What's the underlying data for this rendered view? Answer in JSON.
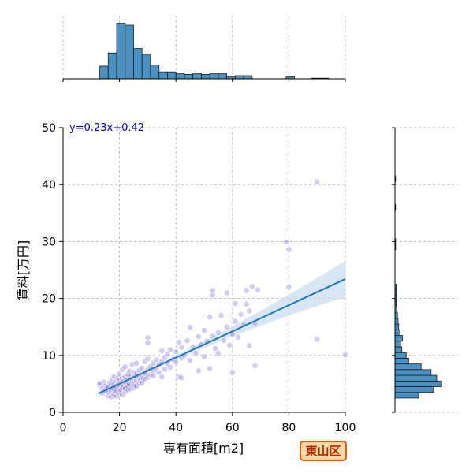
{
  "chart_data": {
    "type": "scatter",
    "xlabel": "専有面積[m2]",
    "ylabel": "賃料[万円]",
    "xlim": [
      0,
      100
    ],
    "ylim": [
      0,
      50
    ],
    "x_ticks": [
      "0",
      "20",
      "40",
      "60",
      "80",
      "100"
    ],
    "y_ticks": [
      "0",
      "10",
      "20",
      "30",
      "40",
      "50"
    ],
    "grid": true,
    "equation": "y=0.23x+0.42",
    "regression": {
      "slope": 0.23,
      "intercept": 0.42,
      "x_range": [
        12.5,
        100
      ]
    },
    "colors": {
      "points": "#7060d0",
      "regression": "#1f77b4",
      "band": "#c6dbef",
      "histogram": "#4a90c0"
    },
    "points": [
      [
        13,
        4.8
      ],
      [
        13,
        5.1
      ],
      [
        14,
        3.4
      ],
      [
        14,
        4.2
      ],
      [
        14.5,
        5.3
      ],
      [
        15,
        3.8
      ],
      [
        15,
        4.6
      ],
      [
        15.5,
        4.3
      ],
      [
        16,
        2.9
      ],
      [
        16,
        3.6
      ],
      [
        16,
        4.4
      ],
      [
        16.5,
        5.2
      ],
      [
        17,
        2.7
      ],
      [
        17,
        3.7
      ],
      [
        17,
        4.9
      ],
      [
        17.5,
        4.0
      ],
      [
        17.5,
        5.7
      ],
      [
        18,
        3.2
      ],
      [
        18,
        4.1
      ],
      [
        18,
        5.0
      ],
      [
        18,
        6.3
      ],
      [
        18.5,
        3.6
      ],
      [
        18.5,
        4.6
      ],
      [
        19,
        2.8
      ],
      [
        19,
        3.8
      ],
      [
        19,
        4.4
      ],
      [
        19,
        5.5
      ],
      [
        19.5,
        4.9
      ],
      [
        19.5,
        6.1
      ],
      [
        20,
        3.3
      ],
      [
        20,
        4.0
      ],
      [
        20,
        4.7
      ],
      [
        20,
        5.6
      ],
      [
        20,
        6.8
      ],
      [
        20.5,
        3.9
      ],
      [
        20.5,
        5.2
      ],
      [
        21,
        3.1
      ],
      [
        21,
        4.3
      ],
      [
        21,
        5.0
      ],
      [
        21,
        6.0
      ],
      [
        21,
        7.5
      ],
      [
        21.5,
        4.6
      ],
      [
        21.5,
        5.4
      ],
      [
        22,
        3.6
      ],
      [
        22,
        4.2
      ],
      [
        22,
        5.1
      ],
      [
        22,
        6.2
      ],
      [
        22,
        8.0
      ],
      [
        22.5,
        4.8
      ],
      [
        22.5,
        5.8
      ],
      [
        23,
        3.9
      ],
      [
        23,
        4.5
      ],
      [
        23,
        5.3
      ],
      [
        23,
        6.6
      ],
      [
        23.5,
        5.0
      ],
      [
        23.5,
        7.2
      ],
      [
        24,
        4.1
      ],
      [
        24,
        4.9
      ],
      [
        24,
        5.7
      ],
      [
        24,
        6.4
      ],
      [
        24.5,
        5.4
      ],
      [
        24.5,
        8.4
      ],
      [
        25,
        4.3
      ],
      [
        25,
        5.2
      ],
      [
        25,
        6.0
      ],
      [
        25,
        7.0
      ],
      [
        25.5,
        4.7
      ],
      [
        25.5,
        6.3
      ],
      [
        26,
        4.6
      ],
      [
        26,
        5.5
      ],
      [
        26,
        6.8
      ],
      [
        26,
        8.6
      ],
      [
        27,
        5.0
      ],
      [
        27,
        6.1
      ],
      [
        27,
        7.4
      ],
      [
        27.5,
        5.6
      ],
      [
        28,
        5.2
      ],
      [
        28,
        6.5
      ],
      [
        28,
        7.8
      ],
      [
        28.5,
        6.0
      ],
      [
        29,
        5.8
      ],
      [
        29,
        7.0
      ],
      [
        29,
        8.9
      ],
      [
        29.5,
        6.7
      ],
      [
        30,
        6.1
      ],
      [
        30,
        7.5
      ],
      [
        30,
        9.4
      ],
      [
        30,
        12.2
      ],
      [
        30,
        13.1
      ],
      [
        31,
        6.6
      ],
      [
        31,
        8.0
      ],
      [
        32,
        7.2
      ],
      [
        32,
        8.6
      ],
      [
        32,
        6.4
      ],
      [
        33,
        7.7
      ],
      [
        33,
        9.2
      ],
      [
        34,
        7.0
      ],
      [
        34,
        8.4
      ],
      [
        35,
        8.9
      ],
      [
        35,
        10.8
      ],
      [
        35,
        6.2
      ],
      [
        36,
        9.6
      ],
      [
        36,
        7.6
      ],
      [
        37,
        8.5
      ],
      [
        37,
        10.2
      ],
      [
        38,
        7.9
      ],
      [
        38,
        11.0
      ],
      [
        39,
        9.3
      ],
      [
        40,
        8.8
      ],
      [
        40,
        10.6
      ],
      [
        41,
        6.2
      ],
      [
        41,
        12.3
      ],
      [
        42,
        9.5
      ],
      [
        42,
        11.4
      ],
      [
        42,
        6.1
      ],
      [
        43,
        10.0
      ],
      [
        44,
        12.6
      ],
      [
        45,
        9.1
      ],
      [
        45,
        14.9
      ],
      [
        46,
        11.5
      ],
      [
        47,
        10.4
      ],
      [
        48,
        13.3
      ],
      [
        48,
        7.3
      ],
      [
        49,
        11.9
      ],
      [
        50,
        9.8
      ],
      [
        50,
        14.4
      ],
      [
        51,
        12.5
      ],
      [
        52,
        7.7
      ],
      [
        52,
        16.7
      ],
      [
        53,
        13.4
      ],
      [
        53,
        20.6
      ],
      [
        53,
        21.4
      ],
      [
        54,
        11.2
      ],
      [
        55,
        14.0
      ],
      [
        55,
        10.4
      ],
      [
        56,
        17.0
      ],
      [
        57,
        12.6
      ],
      [
        58,
        15.0
      ],
      [
        58,
        21.0
      ],
      [
        59,
        11.8
      ],
      [
        60,
        13.7
      ],
      [
        60,
        7.0
      ],
      [
        61,
        16.0
      ],
      [
        61,
        19.1
      ],
      [
        62,
        13.2
      ],
      [
        63,
        17.2
      ],
      [
        64,
        15.4
      ],
      [
        65,
        19.0
      ],
      [
        65,
        21.4
      ],
      [
        66,
        17.8
      ],
      [
        66,
        11.7
      ],
      [
        67,
        22.1
      ],
      [
        68,
        15.6
      ],
      [
        68,
        8.2
      ],
      [
        69,
        21.5
      ],
      [
        79,
        29.9
      ],
      [
        80,
        22.0
      ],
      [
        80,
        28.6
      ],
      [
        90,
        12.8
      ],
      [
        90,
        40.5
      ],
      [
        100,
        10.1
      ]
    ],
    "top_histogram": {
      "bins_start": 13,
      "bin_width": 3,
      "counts": [
        0.2,
        0.41,
        0.88,
        0.85,
        0.48,
        0.39,
        0.22,
        0.11,
        0.11,
        0.08,
        0.07,
        0.08,
        0.07,
        0.08,
        0.08,
        0.03,
        0.05,
        0.05,
        0,
        0,
        0,
        0,
        0.03,
        0,
        0,
        0.01,
        0.01,
        0,
        0
      ]
    },
    "right_histogram": {
      "bins_start": 2.5,
      "bin_width": 1.0,
      "counts": [
        0.38,
        0.62,
        0.75,
        0.67,
        0.58,
        0.42,
        0.22,
        0.18,
        0.11,
        0.09,
        0.12,
        0.08,
        0.06,
        0.05,
        0.04,
        0.03,
        0.02,
        0.02,
        0.02,
        0.02,
        0,
        0,
        0,
        0,
        0,
        0,
        0.01,
        0.01,
        0,
        0,
        0,
        0,
        0,
        0.01,
        0,
        0,
        0,
        0,
        0.01
      ]
    }
  },
  "badge": {
    "label": "東山区"
  }
}
